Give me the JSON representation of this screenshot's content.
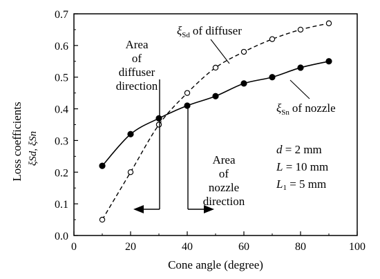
{
  "chart_data": {
    "type": "line",
    "x": [
      10,
      20,
      30,
      40,
      50,
      60,
      70,
      80,
      90
    ],
    "series": [
      {
        "name": "ξSd of diffuser",
        "line_style": "dashed",
        "marker": "open-circle",
        "color": "#000000",
        "values": [
          0.05,
          0.2,
          0.35,
          0.45,
          0.53,
          0.58,
          0.62,
          0.65,
          0.67
        ]
      },
      {
        "name": "ξSn of nozzle",
        "line_style": "solid",
        "marker": "filled-circle",
        "color": "#000000",
        "values": [
          0.22,
          0.32,
          0.37,
          0.41,
          0.44,
          0.48,
          0.5,
          0.53,
          0.55
        ]
      }
    ],
    "xlabel": "Cone angle (degree)",
    "ylabel_line1": "Loss coefficients",
    "ylabel_line2": "ξSd, ξSn",
    "xlim": [
      0,
      100
    ],
    "ylim": [
      0,
      0.7
    ],
    "xticks": [
      "0",
      "20",
      "40",
      "60",
      "80",
      "100"
    ],
    "yticks": [
      "0.0",
      "0.1",
      "0.2",
      "0.3",
      "0.4",
      "0.5",
      "0.6",
      "0.7"
    ],
    "grid": false,
    "legend": "inline-labels",
    "annotations": {
      "diffuser_area": [
        "Area",
        "of",
        "diffuser",
        "direction"
      ],
      "nozzle_area": [
        "Area",
        "of",
        "nozzle",
        "direction"
      ],
      "params": [
        "d = 2 mm",
        "L = 10 mm",
        "L1 = 5 mm"
      ],
      "series_label_diffuser": "of diffuser",
      "series_label_nozzle": "of nozzle"
    }
  }
}
